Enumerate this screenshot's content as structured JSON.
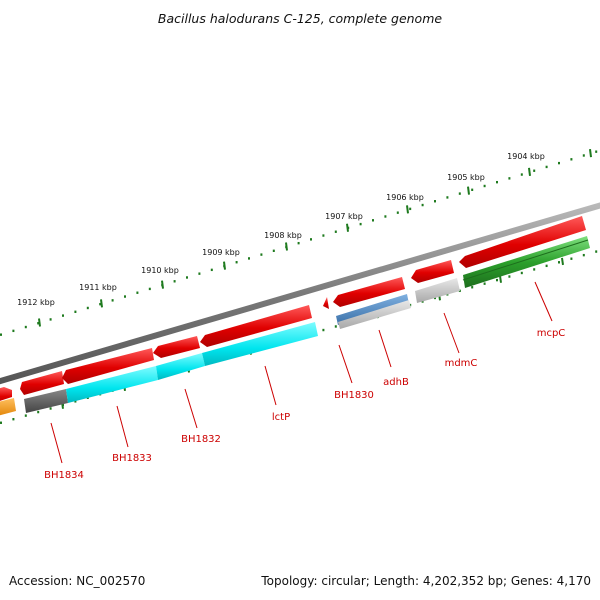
{
  "title": "Bacillus halodurans C-125, complete genome",
  "footer": {
    "accession": "Accession: NC_002570",
    "summary": "Topology: circular; Length: 4,202,352 bp; Genes: 4,170"
  },
  "colors": {
    "forward_gene": "#e41a1c",
    "cyan_gene": "#00e5ee",
    "gray_gene": "#c0c0c0",
    "dark_gene": "#555555",
    "blue_gene": "#4682b4",
    "green_gene": "#2ca02c",
    "orange_gene": "#ff9900",
    "backbone": "#7a7a7a",
    "ticks": "#1e7a1e",
    "label": "#cc0000"
  },
  "scale_ticks": [
    "1904 kbp",
    "1905 kbp",
    "1906 kbp",
    "1907 kbp",
    "1908 kbp",
    "1909 kbp",
    "1910 kbp",
    "1911 kbp",
    "1912 kbp"
  ],
  "gene_labels": [
    "mcpC",
    "mdmC",
    "adhB",
    "BH1830",
    "lctP",
    "BH1832",
    "BH1833",
    "BH1834"
  ]
}
